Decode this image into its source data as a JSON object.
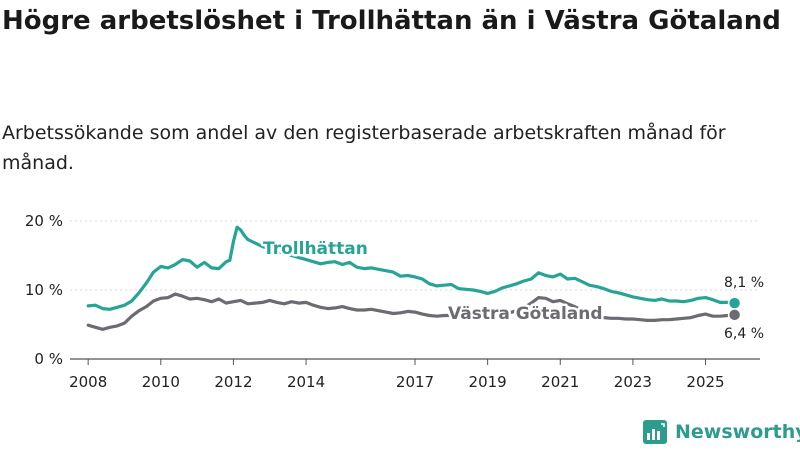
{
  "title": "Högre arbetslöshet i Trollhättan än i Västra Götaland",
  "subtitle": "Arbetssökande som andel av den registerbaserade arbetskraften månad för månad.",
  "brand": {
    "name": "Newsworthy",
    "icon": "newsworthy-logo-icon",
    "color": "#2c9c8d"
  },
  "chart_data": {
    "type": "line",
    "xlim": [
      2007.5,
      2026.5
    ],
    "ylim": [
      0,
      20
    ],
    "yticks": [
      0,
      10,
      20
    ],
    "ytick_labels": [
      "0 %",
      "10 %",
      "20 %"
    ],
    "xticks": [
      2008,
      2010,
      2012,
      2014,
      2017,
      2019,
      2021,
      2023,
      2025
    ],
    "xtick_labels": [
      "2008",
      "2010",
      "2012",
      "2014",
      "2017",
      "2019",
      "2021",
      "2023",
      "2025"
    ],
    "series": [
      {
        "name": "Trollhättan",
        "color": "#26a596",
        "end_label": "8,1 %",
        "points": [
          [
            2008.0,
            7.7
          ],
          [
            2008.2,
            7.8
          ],
          [
            2008.4,
            7.3
          ],
          [
            2008.6,
            7.2
          ],
          [
            2008.8,
            7.5
          ],
          [
            2009.0,
            7.8
          ],
          [
            2009.2,
            8.4
          ],
          [
            2009.4,
            9.6
          ],
          [
            2009.6,
            11.0
          ],
          [
            2009.8,
            12.6
          ],
          [
            2010.0,
            13.4
          ],
          [
            2010.2,
            13.2
          ],
          [
            2010.4,
            13.7
          ],
          [
            2010.6,
            14.4
          ],
          [
            2010.8,
            14.2
          ],
          [
            2011.0,
            13.3
          ],
          [
            2011.2,
            14.0
          ],
          [
            2011.4,
            13.2
          ],
          [
            2011.6,
            13.1
          ],
          [
            2011.8,
            14.1
          ],
          [
            2011.9,
            14.3
          ],
          [
            2012.0,
            17.0
          ],
          [
            2012.1,
            19.1
          ],
          [
            2012.2,
            18.7
          ],
          [
            2012.3,
            17.9
          ],
          [
            2012.4,
            17.3
          ],
          [
            2012.6,
            16.8
          ],
          [
            2012.8,
            16.3
          ],
          [
            2013.0,
            15.9
          ],
          [
            2013.2,
            15.5
          ],
          [
            2013.4,
            15.4
          ],
          [
            2013.6,
            15.0
          ],
          [
            2013.8,
            14.7
          ],
          [
            2014.0,
            14.4
          ],
          [
            2014.2,
            14.1
          ],
          [
            2014.4,
            13.8
          ],
          [
            2014.6,
            14.0
          ],
          [
            2014.8,
            14.1
          ],
          [
            2015.0,
            13.7
          ],
          [
            2015.2,
            14.0
          ],
          [
            2015.4,
            13.3
          ],
          [
            2015.6,
            13.1
          ],
          [
            2015.8,
            13.2
          ],
          [
            2016.0,
            13.0
          ],
          [
            2016.2,
            12.8
          ],
          [
            2016.4,
            12.6
          ],
          [
            2016.6,
            12.0
          ],
          [
            2016.8,
            12.1
          ],
          [
            2017.0,
            11.9
          ],
          [
            2017.2,
            11.6
          ],
          [
            2017.4,
            10.9
          ],
          [
            2017.6,
            10.6
          ],
          [
            2017.8,
            10.7
          ],
          [
            2018.0,
            10.8
          ],
          [
            2018.2,
            10.2
          ],
          [
            2018.4,
            10.1
          ],
          [
            2018.6,
            10.0
          ],
          [
            2018.8,
            9.8
          ],
          [
            2019.0,
            9.5
          ],
          [
            2019.2,
            9.8
          ],
          [
            2019.4,
            10.3
          ],
          [
            2019.6,
            10.6
          ],
          [
            2019.8,
            10.9
          ],
          [
            2020.0,
            11.3
          ],
          [
            2020.2,
            11.6
          ],
          [
            2020.4,
            12.5
          ],
          [
            2020.6,
            12.1
          ],
          [
            2020.8,
            11.9
          ],
          [
            2021.0,
            12.3
          ],
          [
            2021.2,
            11.6
          ],
          [
            2021.4,
            11.7
          ],
          [
            2021.6,
            11.2
          ],
          [
            2021.8,
            10.7
          ],
          [
            2022.0,
            10.5
          ],
          [
            2022.2,
            10.2
          ],
          [
            2022.4,
            9.8
          ],
          [
            2022.6,
            9.6
          ],
          [
            2022.8,
            9.3
          ],
          [
            2023.0,
            9.0
          ],
          [
            2023.2,
            8.8
          ],
          [
            2023.4,
            8.6
          ],
          [
            2023.6,
            8.5
          ],
          [
            2023.8,
            8.7
          ],
          [
            2024.0,
            8.4
          ],
          [
            2024.2,
            8.4
          ],
          [
            2024.4,
            8.3
          ],
          [
            2024.6,
            8.5
          ],
          [
            2024.8,
            8.8
          ],
          [
            2025.0,
            8.9
          ],
          [
            2025.2,
            8.6
          ],
          [
            2025.4,
            8.2
          ],
          [
            2025.6,
            8.2
          ],
          [
            2025.8,
            8.1
          ]
        ]
      },
      {
        "name": "Västra Götaland",
        "color": "#6b6b72",
        "end_label": "6,4 %",
        "points": [
          [
            2008.0,
            4.9
          ],
          [
            2008.2,
            4.6
          ],
          [
            2008.4,
            4.3
          ],
          [
            2008.6,
            4.6
          ],
          [
            2008.8,
            4.8
          ],
          [
            2009.0,
            5.2
          ],
          [
            2009.2,
            6.2
          ],
          [
            2009.4,
            7.0
          ],
          [
            2009.6,
            7.6
          ],
          [
            2009.8,
            8.4
          ],
          [
            2010.0,
            8.8
          ],
          [
            2010.2,
            8.9
          ],
          [
            2010.4,
            9.4
          ],
          [
            2010.6,
            9.1
          ],
          [
            2010.8,
            8.7
          ],
          [
            2011.0,
            8.8
          ],
          [
            2011.2,
            8.6
          ],
          [
            2011.4,
            8.3
          ],
          [
            2011.6,
            8.7
          ],
          [
            2011.8,
            8.1
          ],
          [
            2012.0,
            8.3
          ],
          [
            2012.2,
            8.5
          ],
          [
            2012.4,
            8.0
          ],
          [
            2012.6,
            8.1
          ],
          [
            2012.8,
            8.2
          ],
          [
            2013.0,
            8.5
          ],
          [
            2013.2,
            8.2
          ],
          [
            2013.4,
            8.0
          ],
          [
            2013.6,
            8.3
          ],
          [
            2013.8,
            8.1
          ],
          [
            2014.0,
            8.2
          ],
          [
            2014.2,
            7.8
          ],
          [
            2014.4,
            7.5
          ],
          [
            2014.6,
            7.3
          ],
          [
            2014.8,
            7.4
          ],
          [
            2015.0,
            7.6
          ],
          [
            2015.2,
            7.3
          ],
          [
            2015.4,
            7.1
          ],
          [
            2015.6,
            7.1
          ],
          [
            2015.8,
            7.2
          ],
          [
            2016.0,
            7.0
          ],
          [
            2016.2,
            6.8
          ],
          [
            2016.4,
            6.6
          ],
          [
            2016.6,
            6.7
          ],
          [
            2016.8,
            6.9
          ],
          [
            2017.0,
            6.8
          ],
          [
            2017.2,
            6.5
          ],
          [
            2017.4,
            6.3
          ],
          [
            2017.6,
            6.2
          ],
          [
            2017.8,
            6.3
          ],
          [
            2018.0,
            6.3
          ],
          [
            2018.2,
            6.1
          ],
          [
            2018.4,
            6.0
          ],
          [
            2018.6,
            5.9
          ],
          [
            2018.8,
            6.0
          ],
          [
            2019.0,
            6.1
          ],
          [
            2019.2,
            6.4
          ],
          [
            2019.4,
            6.5
          ],
          [
            2019.6,
            6.7
          ],
          [
            2019.8,
            7.0
          ],
          [
            2020.0,
            7.4
          ],
          [
            2020.2,
            8.1
          ],
          [
            2020.4,
            8.9
          ],
          [
            2020.6,
            8.8
          ],
          [
            2020.8,
            8.3
          ],
          [
            2021.0,
            8.5
          ],
          [
            2021.2,
            8.0
          ],
          [
            2021.4,
            7.6
          ],
          [
            2021.6,
            7.0
          ],
          [
            2021.8,
            6.6
          ],
          [
            2022.0,
            6.2
          ],
          [
            2022.2,
            6.0
          ],
          [
            2022.4,
            5.9
          ],
          [
            2022.6,
            5.9
          ],
          [
            2022.8,
            5.8
          ],
          [
            2023.0,
            5.8
          ],
          [
            2023.2,
            5.7
          ],
          [
            2023.4,
            5.6
          ],
          [
            2023.6,
            5.6
          ],
          [
            2023.8,
            5.7
          ],
          [
            2024.0,
            5.7
          ],
          [
            2024.2,
            5.8
          ],
          [
            2024.4,
            5.9
          ],
          [
            2024.6,
            6.0
          ],
          [
            2024.8,
            6.3
          ],
          [
            2025.0,
            6.5
          ],
          [
            2025.2,
            6.2
          ],
          [
            2025.4,
            6.2
          ],
          [
            2025.6,
            6.3
          ],
          [
            2025.8,
            6.4
          ]
        ]
      }
    ]
  }
}
